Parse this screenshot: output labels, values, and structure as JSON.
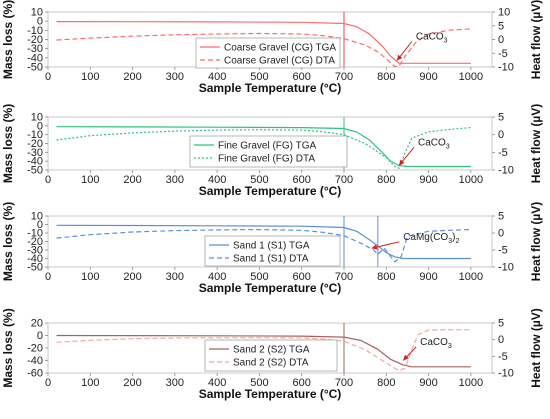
{
  "figure": {
    "panel_count": 4
  },
  "chart_data": [
    {
      "type": "line",
      "xlabel": "Sample Temperature (°C)",
      "ylabel": "Mass loss (%)",
      "y2label": "Heat flow (µV)",
      "xlim": [
        0,
        1050
      ],
      "xticks": [
        0,
        100,
        200,
        300,
        400,
        500,
        600,
        700,
        800,
        900,
        1000
      ],
      "ylim": [
        -50,
        10
      ],
      "yticks": [
        -50,
        -40,
        -30,
        -20,
        -10,
        0,
        10
      ],
      "y2lim": [
        -10,
        10
      ],
      "y2ticks": [
        -10,
        -5,
        0,
        5,
        10
      ],
      "vline": 700,
      "vline_color": "#e8484f",
      "grid": false,
      "legend_position": "center-left",
      "annotation": {
        "text": "CaCO",
        "sub": "3",
        "x": 870,
        "y": -20,
        "arrow_to_x": 825,
        "arrow_to_y": -43,
        "axis": "y"
      },
      "series": [
        {
          "name": "Coarse Gravel (CG) TGA",
          "axis": "y",
          "style": "solid",
          "color": "#ff6b6b",
          "x": [
            20,
            200,
            400,
            600,
            700,
            730,
            760,
            790,
            810,
            830,
            850,
            1000
          ],
          "y": [
            -0.5,
            -0.6,
            -0.8,
            -1.2,
            -2.5,
            -6,
            -14,
            -27,
            -38,
            -46,
            -46,
            -46
          ]
        },
        {
          "name": "Coarse Gravel (CG) DTA",
          "axis": "y2",
          "style": "dashed",
          "color": "#ff6b6b",
          "x": [
            20,
            100,
            200,
            300,
            400,
            500,
            600,
            650,
            700,
            750,
            780,
            800,
            820,
            830,
            845,
            870,
            900,
            950,
            1000
          ],
          "y": [
            -0.2,
            0.5,
            1.2,
            1.7,
            2.0,
            2.2,
            2.0,
            1.4,
            0.3,
            -2,
            -4.5,
            -7,
            -9.8,
            -9.7,
            -6,
            -1,
            2,
            3.4,
            3.8
          ]
        }
      ]
    },
    {
      "type": "line",
      "xlabel": "Sample Temperature (°C)",
      "ylabel": "Mass loss (%)",
      "y2label": "Heat flow (µV)",
      "xlim": [
        0,
        1050
      ],
      "xticks": [
        0,
        100,
        200,
        300,
        400,
        500,
        600,
        700,
        800,
        900,
        1000
      ],
      "ylim": [
        -50,
        10
      ],
      "yticks": [
        -50,
        -40,
        -30,
        -20,
        -10,
        0,
        10
      ],
      "y2lim": [
        -10,
        5
      ],
      "y2ticks": [
        -10,
        -5,
        0,
        5
      ],
      "vline": 700,
      "vline_color": "#2ec27e",
      "grid": false,
      "legend_position": "center-left",
      "annotation": {
        "text": "CaCO",
        "sub": "3",
        "x": 875,
        "y": -22,
        "arrow_to_x": 830,
        "arrow_to_y": -45,
        "axis": "y"
      },
      "series": [
        {
          "name": "Fine Gravel (FG) TGA",
          "axis": "y",
          "style": "solid",
          "color": "#2ec27e",
          "x": [
            20,
            200,
            400,
            600,
            700,
            730,
            760,
            790,
            810,
            830,
            850,
            1000
          ],
          "y": [
            -1,
            -1.2,
            -1.5,
            -2,
            -3,
            -7,
            -16,
            -30,
            -40,
            -45,
            -46,
            -46
          ]
        },
        {
          "name": "Fine Gravel (FG) DTA",
          "axis": "y2",
          "style": "dotted",
          "color": "#2ec27e",
          "x": [
            20,
            100,
            200,
            300,
            400,
            500,
            600,
            650,
            700,
            750,
            800,
            820,
            830,
            845,
            860,
            900,
            950,
            1000
          ],
          "y": [
            -1.5,
            -0.3,
            0.5,
            1.0,
            1.3,
            1.4,
            1.3,
            0.8,
            0,
            -2.5,
            -6.5,
            -9,
            -9.5,
            -5,
            -1,
            0.8,
            1.5,
            2
          ]
        }
      ]
    },
    {
      "type": "line",
      "xlabel": "Sample Temperature (°C)",
      "ylabel": "Mass loss (%)",
      "y2label": "Heat flow (µV)",
      "xlim": [
        0,
        1050
      ],
      "xticks": [
        0,
        100,
        200,
        300,
        400,
        500,
        600,
        700,
        800,
        900,
        1000
      ],
      "ylim": [
        -50,
        10
      ],
      "yticks": [
        -50,
        -40,
        -30,
        -20,
        -10,
        0,
        10
      ],
      "y2lim": [
        -10,
        5
      ],
      "y2ticks": [
        -10,
        -5,
        0,
        5
      ],
      "vline": 700,
      "vline2": 780,
      "vline_color": "#5b8fd8",
      "grid": false,
      "legend_position": "center-left",
      "annotation": {
        "text": "CaMg(CO",
        "sub": "3",
        "suffix": ")",
        "sub2": "2",
        "x": 840,
        "y": -18,
        "arrow_to_x": 765,
        "arrow_to_y": -28,
        "axis": "y"
      },
      "series": [
        {
          "name": "Sand 1 (S1) TGA",
          "axis": "y",
          "style": "solid",
          "color": "#5b8fd8",
          "x": [
            20,
            200,
            400,
            600,
            700,
            730,
            760,
            780,
            800,
            820,
            840,
            1000
          ],
          "y": [
            -1,
            -1.2,
            -1.5,
            -2,
            -3.5,
            -8,
            -18,
            -25,
            -33,
            -38,
            -40,
            -40
          ]
        },
        {
          "name": "Sand 1 (S1) DTA",
          "axis": "y2",
          "style": "dashed",
          "color": "#5b8fd8",
          "x": [
            20,
            100,
            200,
            300,
            400,
            500,
            600,
            650,
            700,
            740,
            770,
            780,
            795,
            805,
            820,
            835,
            850,
            900,
            950,
            1000
          ],
          "y": [
            -1.5,
            -0.5,
            0.3,
            0.7,
            0.9,
            1.0,
            0.8,
            0.2,
            -0.8,
            -3,
            -5,
            -6.3,
            -4.5,
            -6,
            -8.5,
            -7,
            -1,
            0.5,
            0.8,
            1.0
          ]
        }
      ]
    },
    {
      "type": "line",
      "xlabel": "Sample Temperature (°C)",
      "ylabel": "Mass loss (%)",
      "y2label": "Heat flow (µV)",
      "xlim": [
        0,
        1050
      ],
      "xticks": [
        0,
        100,
        200,
        300,
        400,
        500,
        600,
        700,
        800,
        900,
        1000
      ],
      "ylim": [
        -60,
        20
      ],
      "yticks": [
        -60,
        -40,
        -20,
        0,
        20
      ],
      "y2lim": [
        -10,
        5
      ],
      "y2ticks": [
        -10,
        -5,
        0,
        5
      ],
      "vline": 700,
      "vline_color": "#a8645a",
      "grid": false,
      "legend_position": "center-left",
      "annotation": {
        "text": "CaCO",
        "sub": "3",
        "x": 880,
        "y": -15,
        "arrow_to_x": 840,
        "arrow_to_y": -40,
        "axis": "y"
      },
      "series": [
        {
          "name": "Sand 2 (S2) TGA",
          "axis": "y",
          "style": "solid",
          "color": "#a8645a",
          "x": [
            20,
            200,
            400,
            600,
            700,
            740,
            780,
            810,
            840,
            860,
            880,
            1000
          ],
          "y": [
            0,
            -0.2,
            -0.5,
            -1,
            -2.5,
            -8,
            -22,
            -38,
            -47,
            -50,
            -50,
            -50
          ]
        },
        {
          "name": "Sand 2 (S2) DTA",
          "axis": "y2",
          "style": "dashed",
          "color": "#f4a6a0",
          "x": [
            20,
            100,
            200,
            300,
            400,
            500,
            600,
            650,
            700,
            750,
            800,
            830,
            845,
            860,
            875,
            900,
            950,
            1000
          ],
          "y": [
            -0.8,
            -0.2,
            0.3,
            0.5,
            0.6,
            0.6,
            0.5,
            0.2,
            -0.5,
            -3,
            -7,
            -9.3,
            -8.5,
            -3,
            1.5,
            2.9,
            3.0,
            3.0
          ]
        }
      ]
    }
  ]
}
